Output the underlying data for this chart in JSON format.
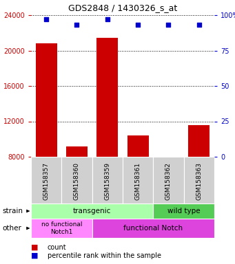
{
  "title": "GDS2848 / 1430326_s_at",
  "samples": [
    "GSM158357",
    "GSM158360",
    "GSM158359",
    "GSM158361",
    "GSM158362",
    "GSM158363"
  ],
  "counts": [
    20800,
    9200,
    21400,
    10400,
    7800,
    11600
  ],
  "percentiles": [
    97,
    93,
    97,
    93,
    93,
    93
  ],
  "ylim_left": [
    8000,
    24000
  ],
  "ylim_right": [
    0,
    100
  ],
  "yticks_left": [
    8000,
    12000,
    16000,
    20000,
    24000
  ],
  "yticks_right": [
    0,
    25,
    50,
    75,
    100
  ],
  "bar_color": "#cc0000",
  "dot_color": "#0000cc",
  "bar_bottom": 8000,
  "strain_labels": [
    {
      "text": "transgenic",
      "cols": 4,
      "color": "#aaffaa"
    },
    {
      "text": "wild type",
      "cols": 2,
      "color": "#55cc55"
    }
  ],
  "other_labels": [
    {
      "text": "no functional\nNotch1",
      "cols": 2,
      "color": "#ff88ff"
    },
    {
      "text": "functional Notch",
      "cols": 4,
      "color": "#dd44dd"
    }
  ],
  "strain_row_label": "strain",
  "other_row_label": "other",
  "legend_count_label": "count",
  "legend_pct_label": "percentile rank within the sample",
  "tick_label_color_left": "#cc0000",
  "tick_label_color_right": "#0000cc",
  "bg_color": "#ffffff",
  "gray_box_color": "#d0d0d0"
}
